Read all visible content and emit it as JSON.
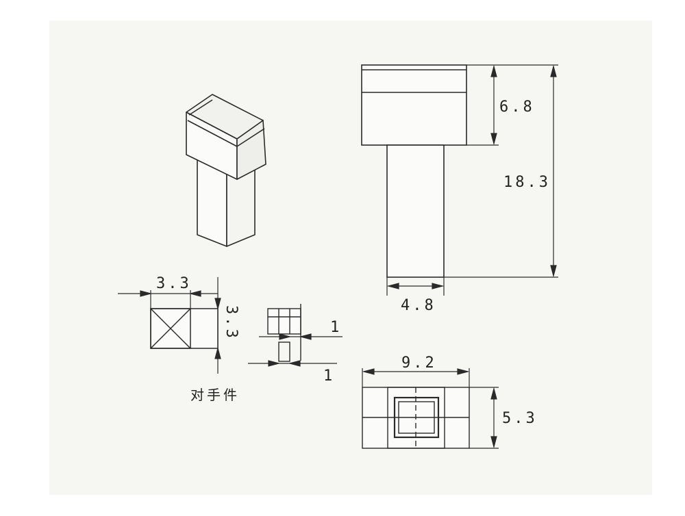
{
  "colors": {
    "paper": "#f6f6f3",
    "background": "#ffffff",
    "ink": "#2a2a2a"
  },
  "dimensions": {
    "cap_height": "6.8",
    "total_height": "18.3",
    "stem_width": "4.8",
    "base_width": "9.2",
    "base_height": "5.3",
    "mating_width": "3.3",
    "mating_height": "3.3",
    "slot_width": "1",
    "slot_depth": "1"
  },
  "labels": {
    "mating_part": "对手件"
  }
}
